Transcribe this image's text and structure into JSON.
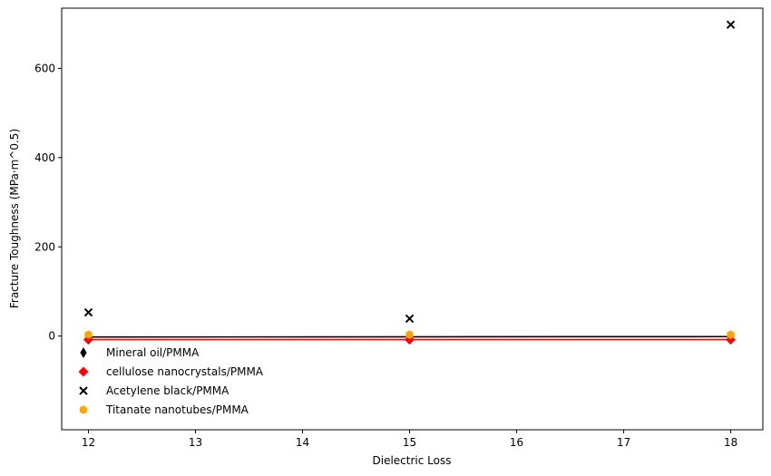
{
  "chart_data": {
    "type": "scatter",
    "xlabel": "Dielectric Loss",
    "ylabel": "Fracture Toughness (MPa·m^0.5)",
    "xlim": [
      11.75,
      18.3
    ],
    "ylim": [
      -210,
      735
    ],
    "x_ticks": [
      12,
      13,
      14,
      15,
      16,
      17,
      18
    ],
    "y_ticks": [
      0,
      200,
      400,
      600
    ],
    "grid": false,
    "legend_position": "lower-left",
    "series": [
      {
        "name": "Mineral oil/PMMA",
        "marker": "thin_diamond",
        "color": "#000000",
        "x": [
          12,
          15,
          18
        ],
        "y": [
          -2,
          -2,
          -1
        ],
        "trend_line": true
      },
      {
        "name": "cellulose nanocrystals/PMMA",
        "marker": "diamond",
        "color": "#ff0000",
        "x": [
          12,
          15,
          18
        ],
        "y": [
          -8,
          -8,
          -8
        ],
        "trend_line": true
      },
      {
        "name": "Acetylene black/PMMA",
        "marker": "x",
        "color": "#000000",
        "x": [
          12,
          15,
          18
        ],
        "y": [
          53,
          39,
          698
        ],
        "trend_line": false
      },
      {
        "name": "Titanate nanotubes/PMMA",
        "marker": "hexagon",
        "color": "#ffa500",
        "x": [
          12,
          15,
          18
        ],
        "y": [
          3,
          3,
          3
        ],
        "trend_line": false
      }
    ]
  }
}
